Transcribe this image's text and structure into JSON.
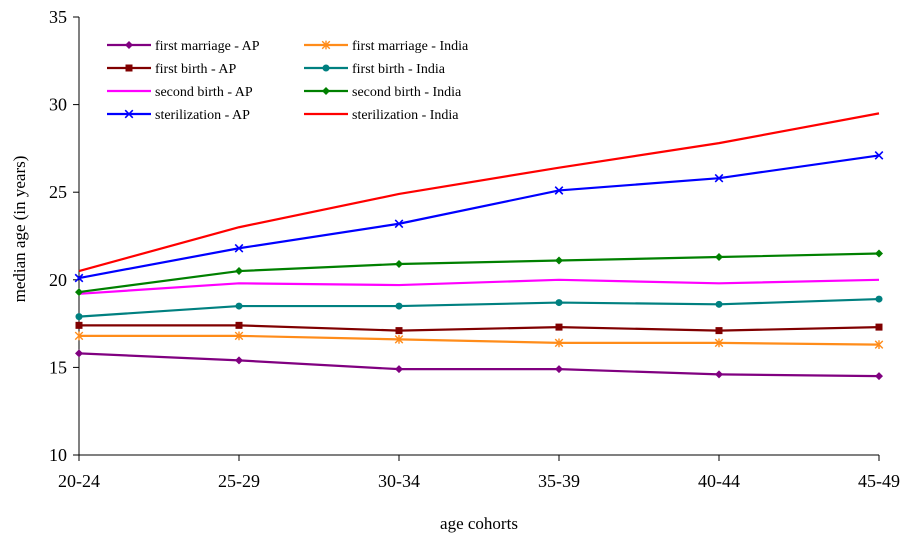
{
  "chart_data": {
    "type": "line",
    "title": "",
    "xlabel": "age cohorts",
    "ylabel": "median age (in years)",
    "categories": [
      "20-24",
      "25-29",
      "30-34",
      "35-39",
      "40-44",
      "45-49"
    ],
    "ylim": [
      10,
      35
    ],
    "yticks": [
      10,
      15,
      20,
      25,
      30,
      35
    ],
    "grid": false,
    "legend_position": "top-left",
    "series": [
      {
        "name": "first marriage - AP",
        "color": "#800080",
        "marker": "diamond",
        "values": [
          15.8,
          15.4,
          14.9,
          14.9,
          14.6,
          14.5
        ]
      },
      {
        "name": "first marriage - India",
        "color": "#ff8c1a",
        "marker": "asterisk",
        "values": [
          16.8,
          16.8,
          16.6,
          16.4,
          16.4,
          16.3
        ]
      },
      {
        "name": "first birth - AP",
        "color": "#800000",
        "marker": "square",
        "values": [
          17.4,
          17.4,
          17.1,
          17.3,
          17.1,
          17.3
        ]
      },
      {
        "name": "first birth - India",
        "color": "#008080",
        "marker": "circle",
        "values": [
          17.9,
          18.5,
          18.5,
          18.7,
          18.6,
          18.9
        ]
      },
      {
        "name": "second birth - AP",
        "color": "#ff00ff",
        "marker": "none",
        "values": [
          19.2,
          19.8,
          19.7,
          20.0,
          19.8,
          20.0
        ]
      },
      {
        "name": "second birth - India",
        "color": "#008000",
        "marker": "diamond",
        "values": [
          19.3,
          20.5,
          20.9,
          21.1,
          21.3,
          21.5
        ]
      },
      {
        "name": "sterilization - AP",
        "color": "#0000ff",
        "marker": "x",
        "values": [
          20.1,
          21.8,
          23.2,
          25.1,
          25.8,
          27.1
        ]
      },
      {
        "name": "sterilization - India",
        "color": "#ff0000",
        "marker": "none",
        "values": [
          20.5,
          23.0,
          24.9,
          26.4,
          27.8,
          29.5
        ]
      }
    ]
  }
}
